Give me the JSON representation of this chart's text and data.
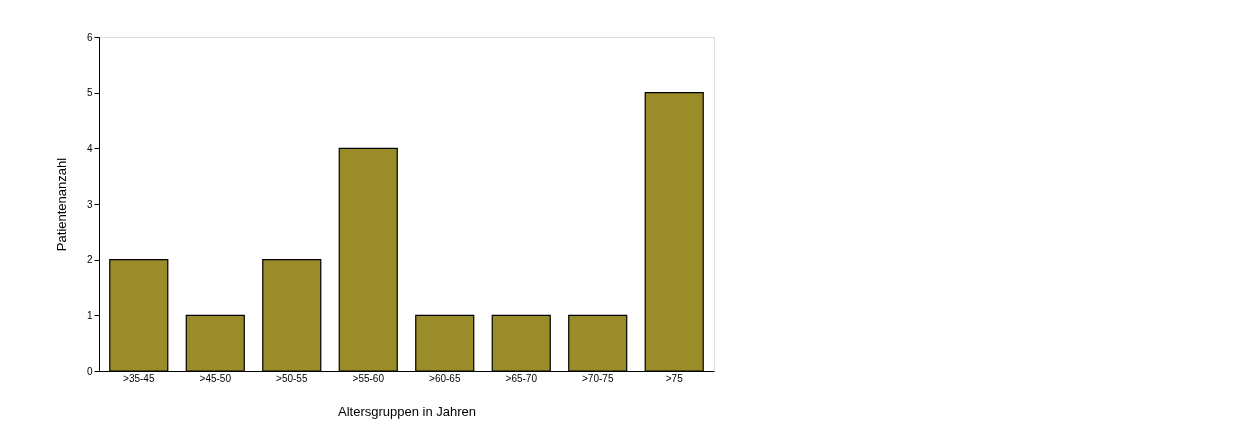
{
  "chart_data": {
    "type": "bar",
    "xlabel": "Altersgruppen in Jahren",
    "ylabel": "Patientenanzahl",
    "categories": [
      ">35-45",
      ">45-50",
      ">50-55",
      ">55-60",
      ">60-65",
      ">65-70",
      ">70-75",
      ">75"
    ],
    "values": [
      2,
      1,
      2,
      4,
      1,
      1,
      1,
      5
    ],
    "color": "#9a8c28",
    "ylim": [
      0,
      6
    ],
    "yticks": [
      0,
      1,
      2,
      3,
      4,
      5,
      6
    ],
    "grid": false
  }
}
